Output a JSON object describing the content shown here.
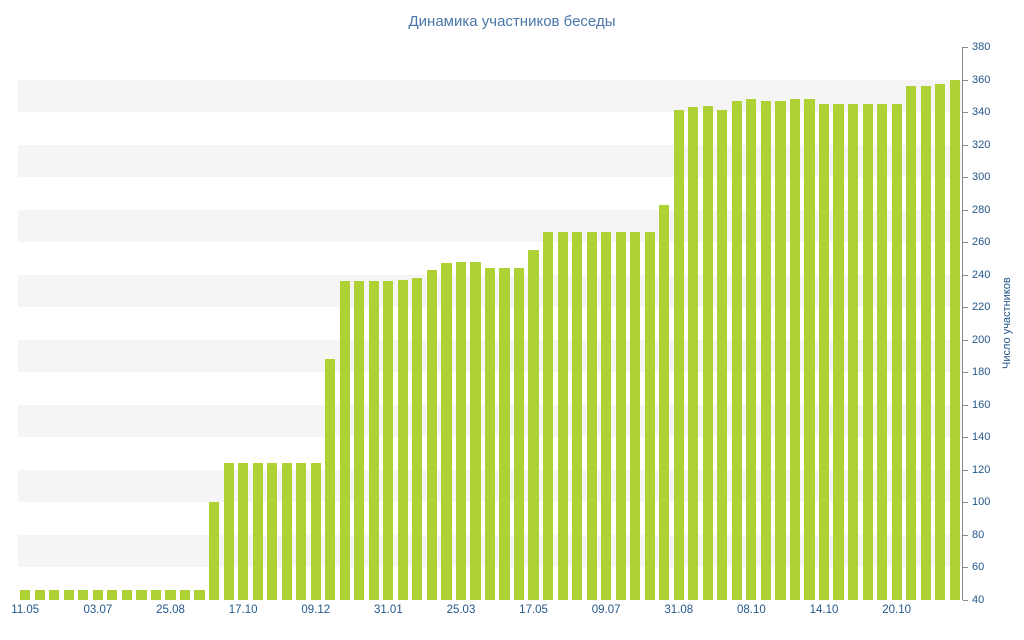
{
  "chart_data": {
    "type": "bar",
    "title": "Динамика участников беседы",
    "xlabel": "",
    "ylabel": "Число участников",
    "ylim": [
      40,
      380
    ],
    "y_tick_step": 20,
    "grid": "alternating-bands",
    "legend_position": "none",
    "x_tick_labels": [
      "11.05",
      "03.07",
      "25.08",
      "17.10",
      "09.12",
      "31.01",
      "25.03",
      "17.05",
      "09.07",
      "31.08",
      "08.10",
      "14.10",
      "20.10"
    ],
    "x_tick_every": 5,
    "values": [
      46,
      46,
      46,
      46,
      46,
      46,
      46,
      46,
      46,
      46,
      46,
      46,
      46,
      100,
      124,
      124,
      124,
      124,
      124,
      124,
      124,
      188,
      236,
      236,
      236,
      236,
      237,
      238,
      243,
      247,
      248,
      248,
      244,
      244,
      244,
      255,
      266,
      266,
      266,
      266,
      266,
      266,
      266,
      266,
      283,
      341,
      343,
      344,
      341,
      347,
      348,
      347,
      347,
      348,
      348,
      345,
      345,
      345,
      345,
      345,
      345,
      356,
      356,
      357,
      360
    ],
    "bar_color": "#aed136",
    "band_color": "#f5f5f5",
    "band_start": 60,
    "band_step": 20,
    "axis_color": "#8a8a8a",
    "tick_text_color": "#24578a",
    "title_color": "#4a77a8"
  }
}
